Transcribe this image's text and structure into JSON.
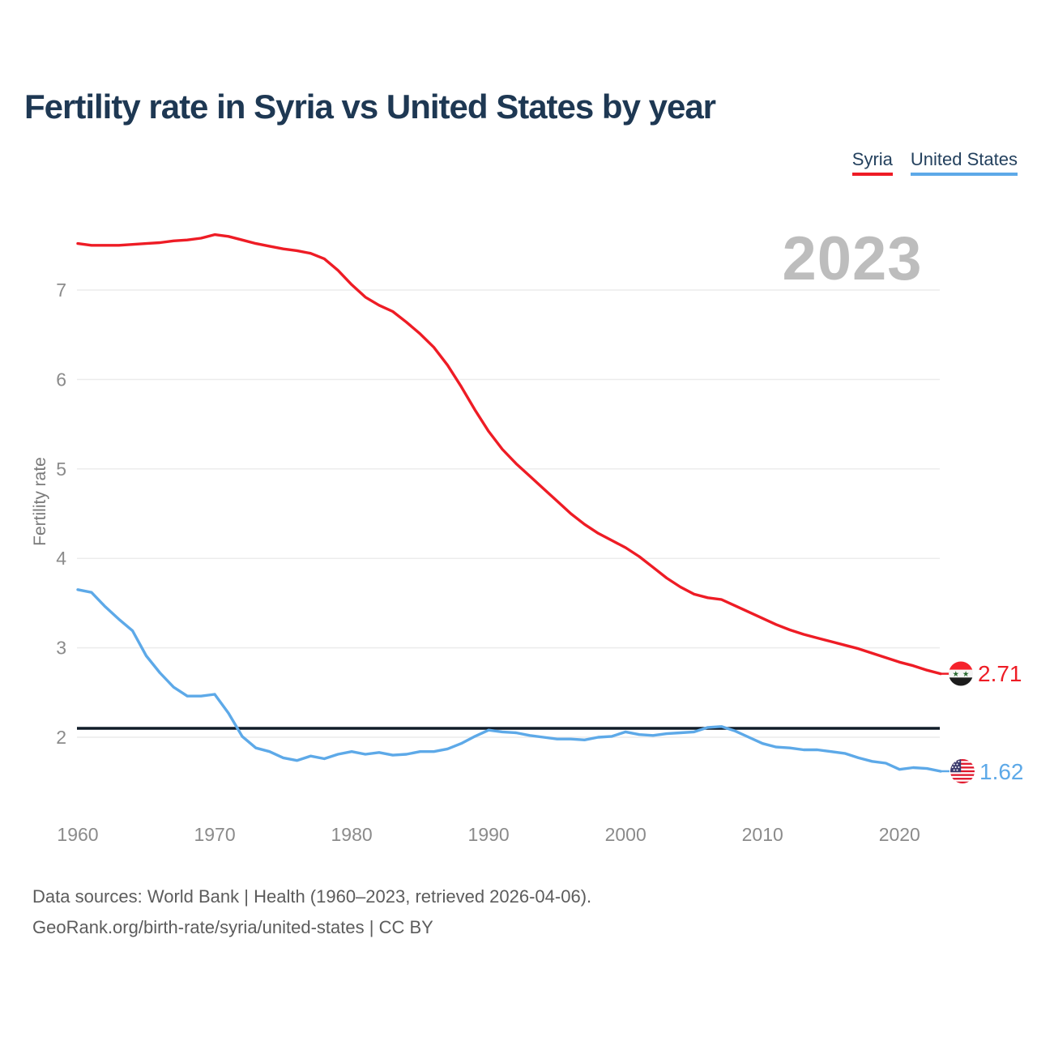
{
  "title": "Fertility rate in Syria vs United States by year",
  "watermark_year": "2023",
  "y_axis_title": "Fertility rate",
  "legend": [
    {
      "label": "Syria",
      "color": "#ee1c25"
    },
    {
      "label": "United States",
      "color": "#5da9e8"
    }
  ],
  "footer": {
    "line1": "Data sources: World Bank | Health (1960–2023, retrieved 2026-04-06).",
    "line2": "GeoRank.org/birth-rate/syria/united-states | CC BY"
  },
  "chart_data": {
    "type": "line",
    "title": "Fertility rate in Syria vs United States by year",
    "xlabel": "",
    "ylabel": "Fertility rate",
    "grid": "horizontal",
    "legend_position": "top-right",
    "xlim": [
      1960,
      2023
    ],
    "ylim": [
      1.5,
      7.8
    ],
    "x_ticks": [
      1960,
      1970,
      1980,
      1990,
      2000,
      2010,
      2020
    ],
    "y_ticks": [
      2,
      3,
      4,
      5,
      6,
      7
    ],
    "x": [
      1960,
      1961,
      1962,
      1963,
      1964,
      1965,
      1966,
      1967,
      1968,
      1969,
      1970,
      1971,
      1972,
      1973,
      1974,
      1975,
      1976,
      1977,
      1978,
      1979,
      1980,
      1981,
      1982,
      1983,
      1984,
      1985,
      1986,
      1987,
      1988,
      1989,
      1990,
      1991,
      1992,
      1993,
      1994,
      1995,
      1996,
      1997,
      1998,
      1999,
      2000,
      2001,
      2002,
      2003,
      2004,
      2005,
      2006,
      2007,
      2008,
      2009,
      2010,
      2011,
      2012,
      2013,
      2014,
      2015,
      2016,
      2017,
      2018,
      2019,
      2020,
      2021,
      2022,
      2023
    ],
    "series": [
      {
        "name": "Syria",
        "color": "#ee1c25",
        "end_label": "2.71",
        "flag": "syria-flag",
        "values": [
          7.52,
          7.5,
          7.5,
          7.5,
          7.51,
          7.52,
          7.53,
          7.55,
          7.56,
          7.58,
          7.62,
          7.6,
          7.56,
          7.52,
          7.49,
          7.46,
          7.44,
          7.41,
          7.35,
          7.22,
          7.06,
          6.92,
          6.83,
          6.76,
          6.64,
          6.51,
          6.36,
          6.16,
          5.92,
          5.66,
          5.42,
          5.22,
          5.06,
          4.92,
          4.78,
          4.64,
          4.5,
          4.38,
          4.28,
          4.2,
          4.12,
          4.02,
          3.9,
          3.78,
          3.68,
          3.6,
          3.56,
          3.54,
          3.47,
          3.4,
          3.33,
          3.26,
          3.2,
          3.15,
          3.11,
          3.07,
          3.03,
          2.99,
          2.94,
          2.89,
          2.84,
          2.8,
          2.75,
          2.71
        ]
      },
      {
        "name": "United States",
        "color": "#5da9e8",
        "end_label": "1.62",
        "flag": "us-flag",
        "values": [
          3.65,
          3.62,
          3.46,
          3.32,
          3.19,
          2.91,
          2.72,
          2.56,
          2.46,
          2.46,
          2.48,
          2.27,
          2.01,
          1.88,
          1.84,
          1.77,
          1.74,
          1.79,
          1.76,
          1.81,
          1.84,
          1.81,
          1.83,
          1.8,
          1.81,
          1.84,
          1.84,
          1.87,
          1.93,
          2.01,
          2.08,
          2.06,
          2.05,
          2.02,
          2.0,
          1.98,
          1.98,
          1.97,
          2.0,
          2.01,
          2.06,
          2.03,
          2.02,
          2.04,
          2.05,
          2.06,
          2.11,
          2.12,
          2.07,
          2.0,
          1.93,
          1.89,
          1.88,
          1.86,
          1.86,
          1.84,
          1.82,
          1.77,
          1.73,
          1.71,
          1.64,
          1.66,
          1.65,
          1.62
        ]
      }
    ],
    "reference_line": {
      "value": 2.1,
      "color": "#101c28"
    }
  }
}
